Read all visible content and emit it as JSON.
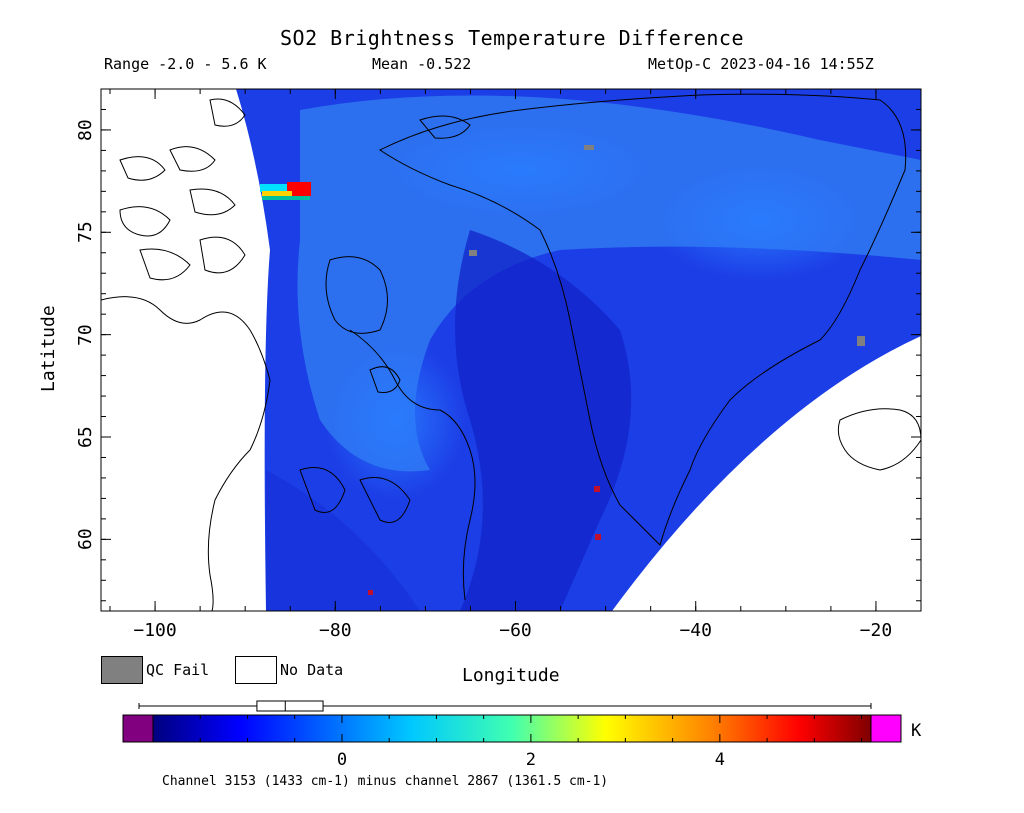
{
  "header": {
    "title": "SO2 Brightness Temperature Difference",
    "range_text": "Range -2.0 - 5.6 K",
    "mean_text": "Mean -0.522",
    "source_text": "MetOp-C 2023-04-16 14:55Z"
  },
  "axes": {
    "x_label": "Longitude",
    "y_label": "Latitude",
    "x_ticks": [
      "−100",
      "−80",
      "−60",
      "−40",
      "−20"
    ],
    "y_ticks": [
      "80",
      "75",
      "70",
      "65",
      "60"
    ],
    "x_range": [
      -106,
      -15
    ],
    "y_range": [
      56.5,
      82
    ]
  },
  "legend": {
    "qc_fail_label": "QC Fail",
    "no_data_label": "No Data",
    "qc_fail_color": "#808080",
    "no_data_color": "#ffffff"
  },
  "colorbar": {
    "range": [
      -2.0,
      5.6
    ],
    "ticks": [
      "0",
      "2",
      "4"
    ],
    "tick_values": [
      0,
      2,
      4
    ],
    "unit": "K",
    "under_color": "#800080",
    "over_color": "#ff00ff",
    "boxplot": {
      "min": -2.0,
      "q1": -0.9,
      "median": -0.6,
      "q3": -0.2,
      "max": 5.6
    }
  },
  "footnote": "Channel 3153 (1433 cm-1) minus channel 2867 (1361.5 cm-1)"
}
